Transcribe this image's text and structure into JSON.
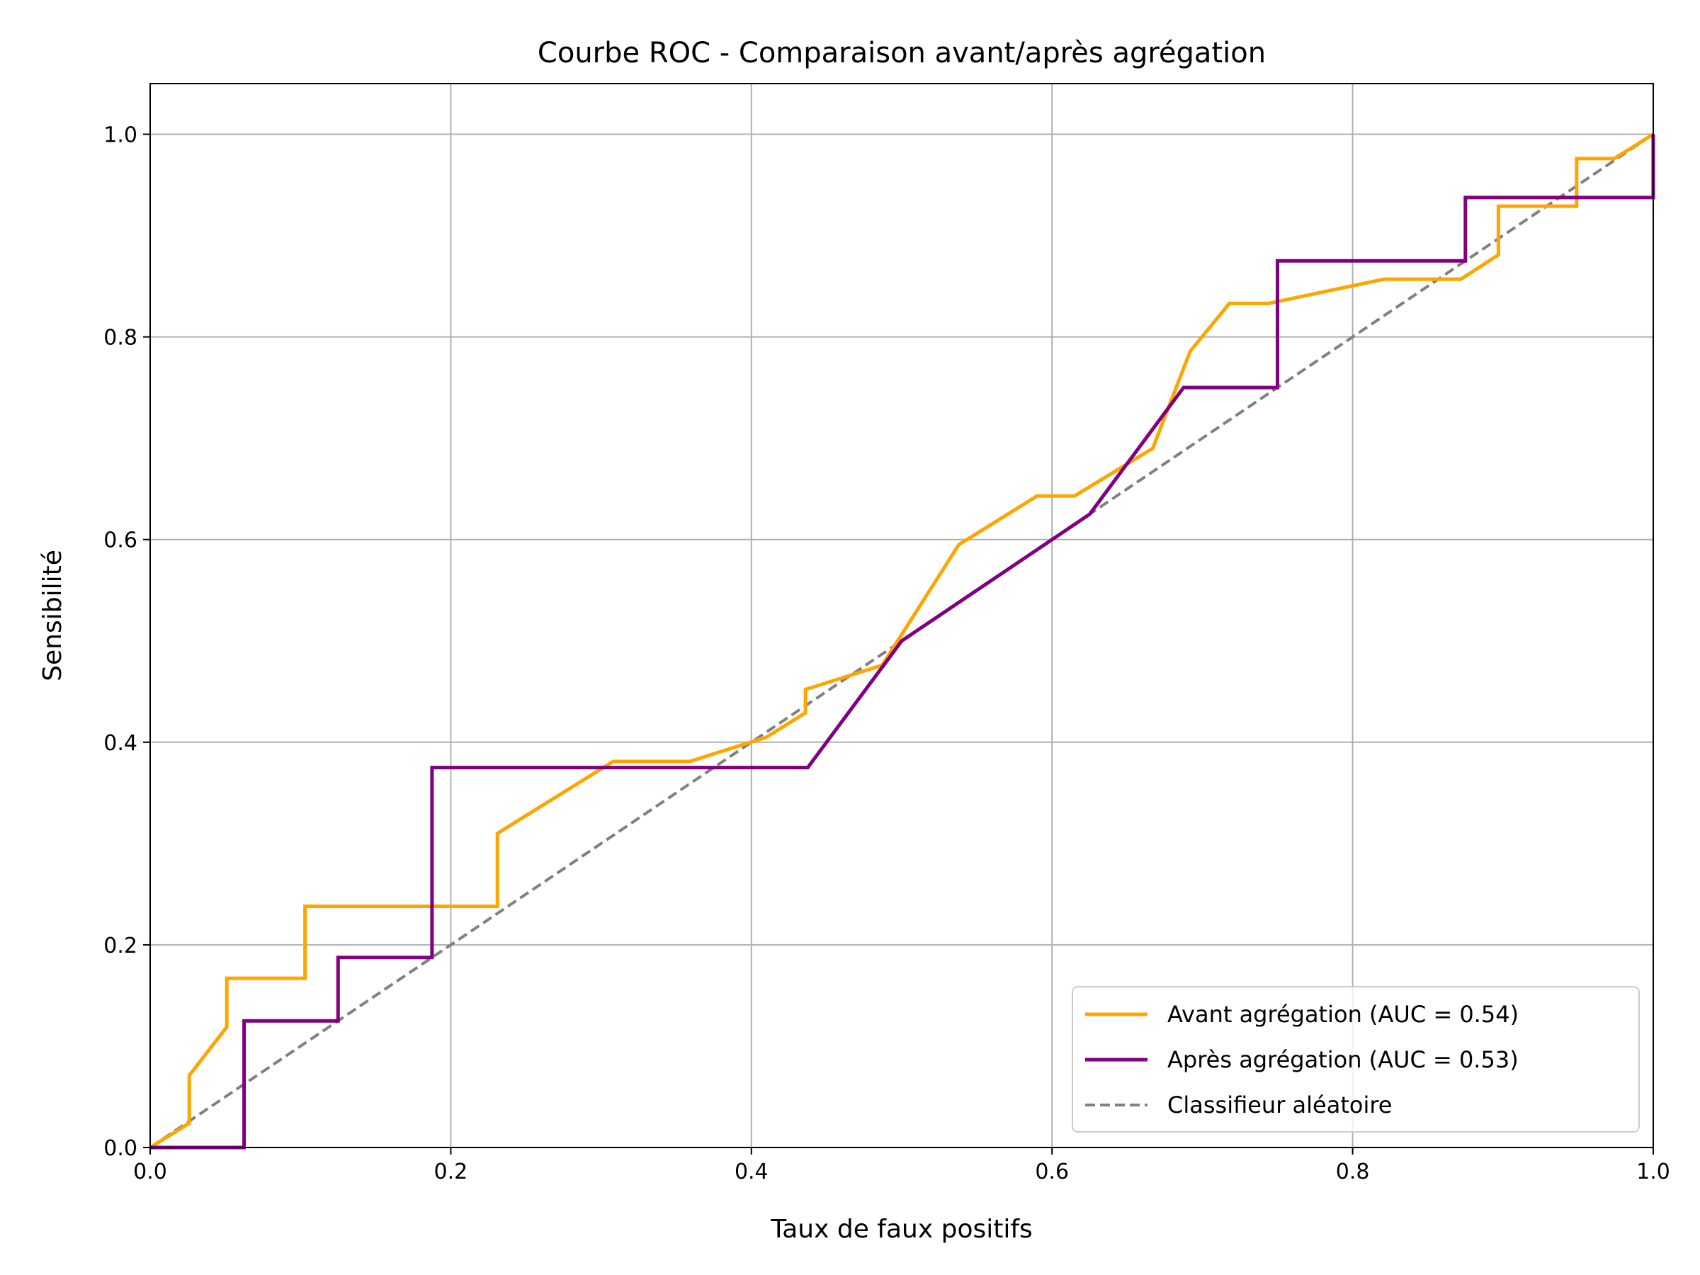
{
  "chart_data": {
    "type": "line",
    "title": "Courbe ROC - Comparaison avant/après agrégation",
    "xlabel": "Taux de faux positifs",
    "ylabel": "Sensibilité",
    "xlim": [
      0.0,
      1.0
    ],
    "ylim": [
      0.0,
      1.05
    ],
    "xticks": [
      "0.0",
      "0.2",
      "0.4",
      "0.6",
      "0.8",
      "1.0"
    ],
    "yticks": [
      "0.0",
      "0.2",
      "0.4",
      "0.6",
      "0.8",
      "1.0"
    ],
    "grid": true,
    "legend_position": "lower right",
    "series": [
      {
        "name": "Avant agrégation (AUC = 0.54)",
        "color": "#ffa500",
        "style": "solid",
        "x": [
          0.0,
          0.026,
          0.026,
          0.051,
          0.051,
          0.103,
          0.103,
          0.231,
          0.231,
          0.308,
          0.359,
          0.41,
          0.436,
          0.436,
          0.487,
          0.538,
          0.59,
          0.615,
          0.667,
          0.692,
          0.718,
          0.744,
          0.821,
          0.872,
          0.897,
          0.897,
          0.949,
          0.949,
          0.974,
          1.0
        ],
        "y": [
          0.0,
          0.024,
          0.071,
          0.119,
          0.167,
          0.167,
          0.238,
          0.238,
          0.31,
          0.381,
          0.381,
          0.405,
          0.429,
          0.452,
          0.476,
          0.595,
          0.643,
          0.643,
          0.69,
          0.786,
          0.833,
          0.833,
          0.857,
          0.857,
          0.881,
          0.929,
          0.929,
          0.976,
          0.976,
          1.0
        ]
      },
      {
        "name": "Après agrégation (AUC = 0.53)",
        "color": "#800080",
        "style": "solid",
        "x": [
          0.0,
          0.0625,
          0.0625,
          0.125,
          0.125,
          0.1875,
          0.1875,
          0.4375,
          0.5,
          0.625,
          0.6875,
          0.75,
          0.75,
          0.875,
          0.875,
          1.0,
          1.0
        ],
        "y": [
          0.0,
          0.0,
          0.125,
          0.125,
          0.1875,
          0.1875,
          0.375,
          0.375,
          0.5,
          0.625,
          0.75,
          0.75,
          0.875,
          0.875,
          0.9375,
          0.9375,
          1.0
        ]
      },
      {
        "name": "Classifieur aléatoire",
        "color": "#808080",
        "style": "dashed",
        "x": [
          0.0,
          1.0
        ],
        "y": [
          0.0,
          1.0
        ]
      }
    ]
  }
}
